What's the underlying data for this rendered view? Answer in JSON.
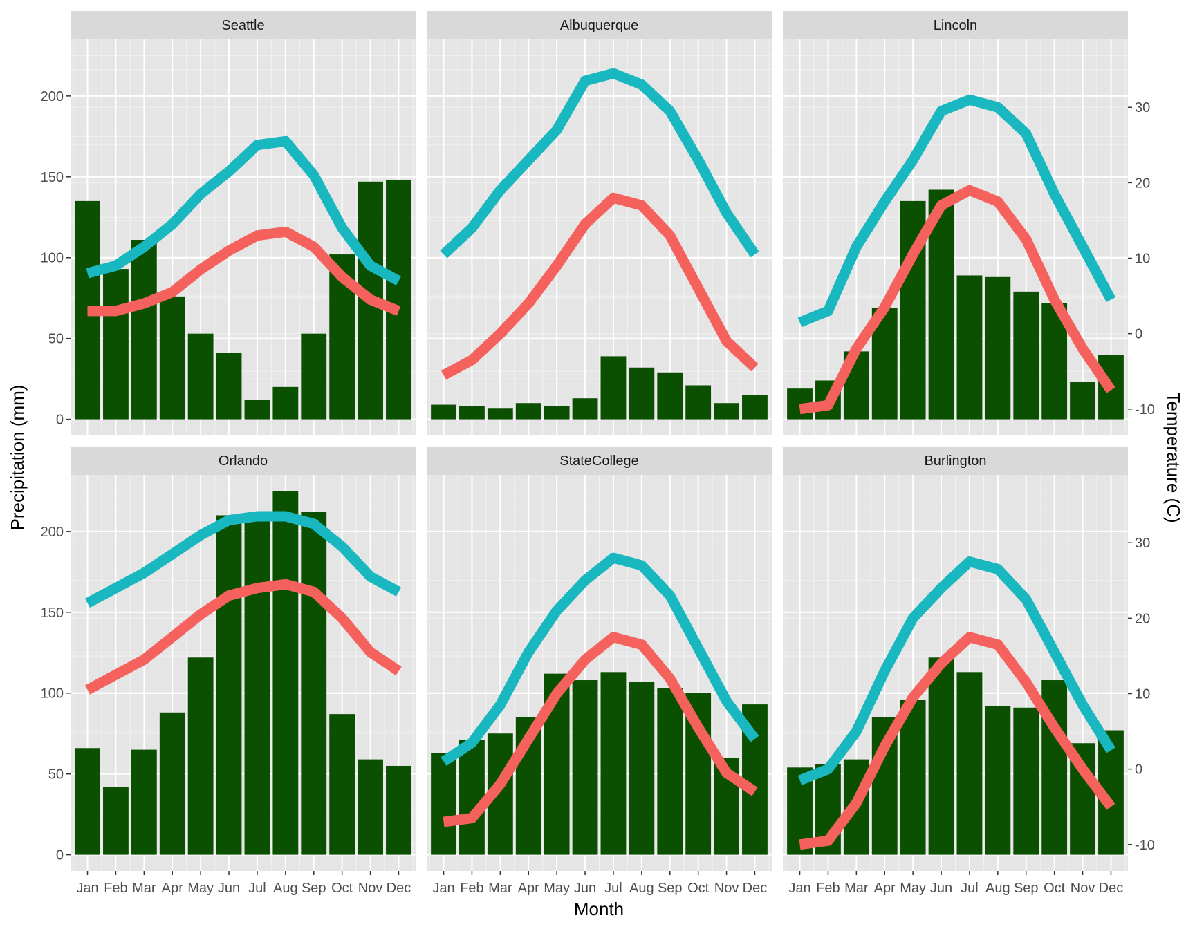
{
  "chart_data": {
    "type": "bar+line",
    "xlabel": "Month",
    "ylabel": "Precipitation (mm)",
    "y2label": "Temperature (C)",
    "categories": [
      "Jan",
      "Feb",
      "Mar",
      "Apr",
      "May",
      "Jun",
      "Jul",
      "Aug",
      "Sep",
      "Oct",
      "Nov",
      "Dec"
    ],
    "ylim": [
      -10,
      235
    ],
    "y_ticks": [
      0,
      50,
      100,
      150,
      200
    ],
    "y2lim": [
      -13.5,
      39
    ],
    "y2_ticks": [
      -10,
      0,
      10,
      20,
      30
    ],
    "colors": {
      "bar": "#0b4f00",
      "high_line": "#19b7bf",
      "low_line": "#f5625d",
      "panel_bg": "#e5e5e5",
      "strip_bg": "#d9d9d9"
    },
    "facets": [
      {
        "name": "Seattle",
        "precip": [
          135,
          93,
          111,
          76,
          53,
          41,
          12,
          20,
          53,
          102,
          147,
          148
        ],
        "temp_high": [
          8,
          9,
          11.5,
          14.5,
          18.5,
          21.5,
          25,
          25.5,
          21,
          14,
          9,
          7
        ],
        "temp_low": [
          3,
          3,
          4,
          5.5,
          8.5,
          11,
          13,
          13.5,
          11.5,
          7.5,
          4.5,
          3
        ]
      },
      {
        "name": "Albuquerque",
        "precip": [
          9,
          8,
          7,
          10,
          8,
          13,
          39,
          32,
          29,
          21,
          10,
          15
        ],
        "temp_high": [
          10.5,
          14,
          19,
          23,
          27,
          33.5,
          34.5,
          33,
          29.5,
          23,
          16,
          10.5
        ],
        "temp_low": [
          -5.5,
          -3.5,
          0,
          4,
          9,
          14.5,
          18,
          17,
          13,
          6,
          -1,
          -4.5
        ]
      },
      {
        "name": "Lincoln",
        "precip": [
          19,
          24,
          42,
          69,
          135,
          142,
          89,
          88,
          79,
          72,
          23,
          40
        ],
        "temp_high": [
          1.5,
          3,
          11.5,
          17.5,
          23,
          29.5,
          31,
          30,
          26.5,
          18.5,
          11.5,
          4.5
        ],
        "temp_low": [
          -10,
          -9.5,
          -2,
          3.5,
          10.5,
          17,
          19,
          17.5,
          12.5,
          4.5,
          -2,
          -7.5
        ]
      },
      {
        "name": "Orlando",
        "precip": [
          66,
          42,
          65,
          88,
          122,
          210,
          210,
          225,
          212,
          87,
          59,
          55
        ],
        "temp_high": [
          22,
          24,
          26,
          28.5,
          31,
          33,
          33.5,
          33.5,
          32.5,
          29.5,
          25.5,
          23.5
        ],
        "temp_low": [
          10.5,
          12.5,
          14.5,
          17.5,
          20.5,
          23,
          24,
          24.5,
          23.5,
          20,
          15.5,
          13
        ]
      },
      {
        "name": "StateCollege",
        "precip": [
          63,
          71,
          75,
          85,
          112,
          108,
          113,
          107,
          103,
          100,
          60,
          93
        ],
        "temp_high": [
          1,
          3.5,
          8.5,
          15.5,
          21,
          25,
          28,
          27,
          23,
          16,
          9,
          4
        ],
        "temp_low": [
          -7,
          -6.5,
          -2,
          4,
          10,
          14.5,
          17.5,
          16.5,
          12,
          5.5,
          -0.5,
          -3
        ]
      },
      {
        "name": "Burlington",
        "precip": [
          54,
          56,
          59,
          85,
          96,
          122,
          113,
          92,
          91,
          108,
          69,
          77
        ],
        "temp_high": [
          -1.5,
          0,
          5,
          13,
          20,
          24,
          27.5,
          26.5,
          22.5,
          15.5,
          8.5,
          2.5
        ],
        "temp_low": [
          -10,
          -9.5,
          -4.5,
          3,
          9.5,
          14,
          17.5,
          16.5,
          11.5,
          5.5,
          0,
          -5
        ]
      }
    ]
  }
}
